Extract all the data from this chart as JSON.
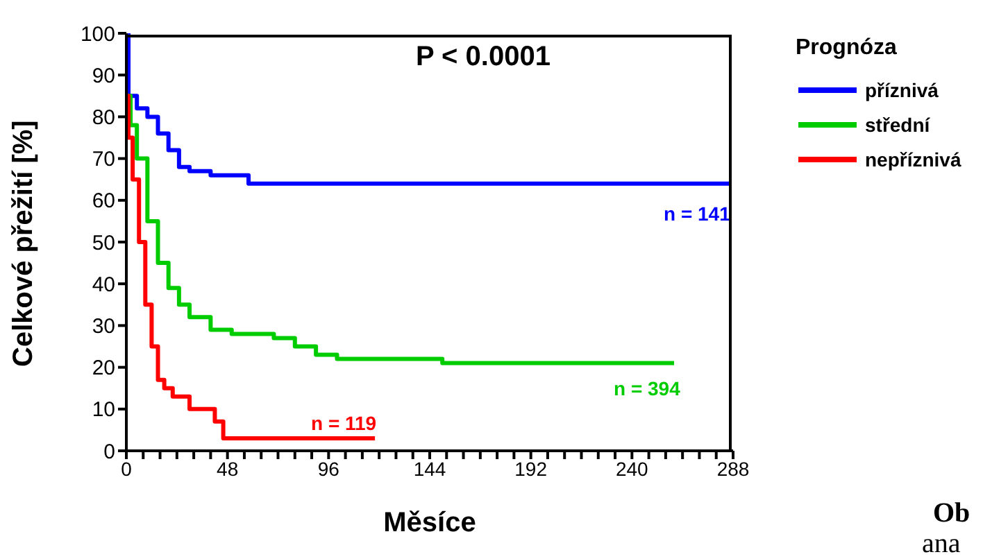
{
  "chart_data": {
    "type": "step",
    "xlabel": "Měsíce",
    "ylabel": "Celkové přežití [%]",
    "legend_title": "Prognóza",
    "legend": "right",
    "marker": "none",
    "line_style": "solid",
    "xlim": [
      0,
      288
    ],
    "ylim": [
      0,
      100
    ],
    "xticks": [
      0,
      {
        "value": 8,
        "label": null
      },
      {
        "value": 16,
        "label": null
      },
      {
        "value": 24,
        "label": null
      },
      {
        "value": 32,
        "label": null
      },
      {
        "value": 40,
        "label": null
      },
      48,
      {
        "value": 56,
        "label": null
      },
      {
        "value": 64,
        "label": null
      },
      {
        "value": 72,
        "label": null
      },
      {
        "value": 80,
        "label": null
      },
      {
        "value": 88,
        "label": null
      },
      96,
      {
        "value": 104,
        "label": null
      },
      {
        "value": 112,
        "label": null
      },
      {
        "value": 120,
        "label": null
      },
      {
        "value": 128,
        "label": null
      },
      {
        "value": 136,
        "label": null
      },
      144,
      {
        "value": 152,
        "label": null
      },
      {
        "value": 160,
        "label": null
      },
      {
        "value": 168,
        "label": null
      },
      {
        "value": 176,
        "label": null
      },
      {
        "value": 184,
        "label": null
      },
      192,
      {
        "value": 200,
        "label": null
      },
      {
        "value": 208,
        "label": null
      },
      {
        "value": 216,
        "label": null
      },
      {
        "value": 224,
        "label": null
      },
      {
        "value": 232,
        "label": null
      },
      240,
      {
        "value": 248,
        "label": null
      },
      {
        "value": 256,
        "label": null
      },
      {
        "value": 264,
        "label": null
      },
      {
        "value": 272,
        "label": null
      },
      {
        "value": 280,
        "label": null
      },
      288
    ],
    "yticks": [
      0,
      10,
      20,
      30,
      40,
      50,
      60,
      70,
      80,
      90,
      100
    ],
    "series": [
      {
        "name": "příznivá",
        "color": "#0000ff",
        "x": [
          0,
          1,
          5,
          10,
          15,
          20,
          25,
          30,
          40,
          58,
          287
        ],
        "values": [
          100,
          85,
          82,
          80,
          76,
          72,
          68,
          67,
          66,
          64,
          64
        ]
      },
      {
        "name": "střední",
        "color": "#00cc00",
        "x": [
          0,
          2,
          5,
          10,
          15,
          20,
          25,
          30,
          40,
          50,
          70,
          80,
          90,
          100,
          150,
          260
        ],
        "values": [
          85,
          78,
          70,
          55,
          45,
          39,
          35,
          32,
          29,
          28,
          27,
          25,
          23,
          22,
          21,
          21
        ]
      },
      {
        "name": "nepříznivá",
        "color": "#ff0000",
        "x": [
          0,
          1,
          3,
          6,
          9,
          12,
          15,
          18,
          22,
          30,
          38,
          42,
          46,
          118
        ],
        "values": [
          85,
          75,
          65,
          50,
          35,
          25,
          17,
          15,
          13,
          10,
          10,
          7,
          3,
          3
        ]
      }
    ],
    "annotations": [
      "P < 0.0001",
      "n = 141",
      "n = 394",
      "n = 119",
      "Ob",
      "ana"
    ]
  }
}
